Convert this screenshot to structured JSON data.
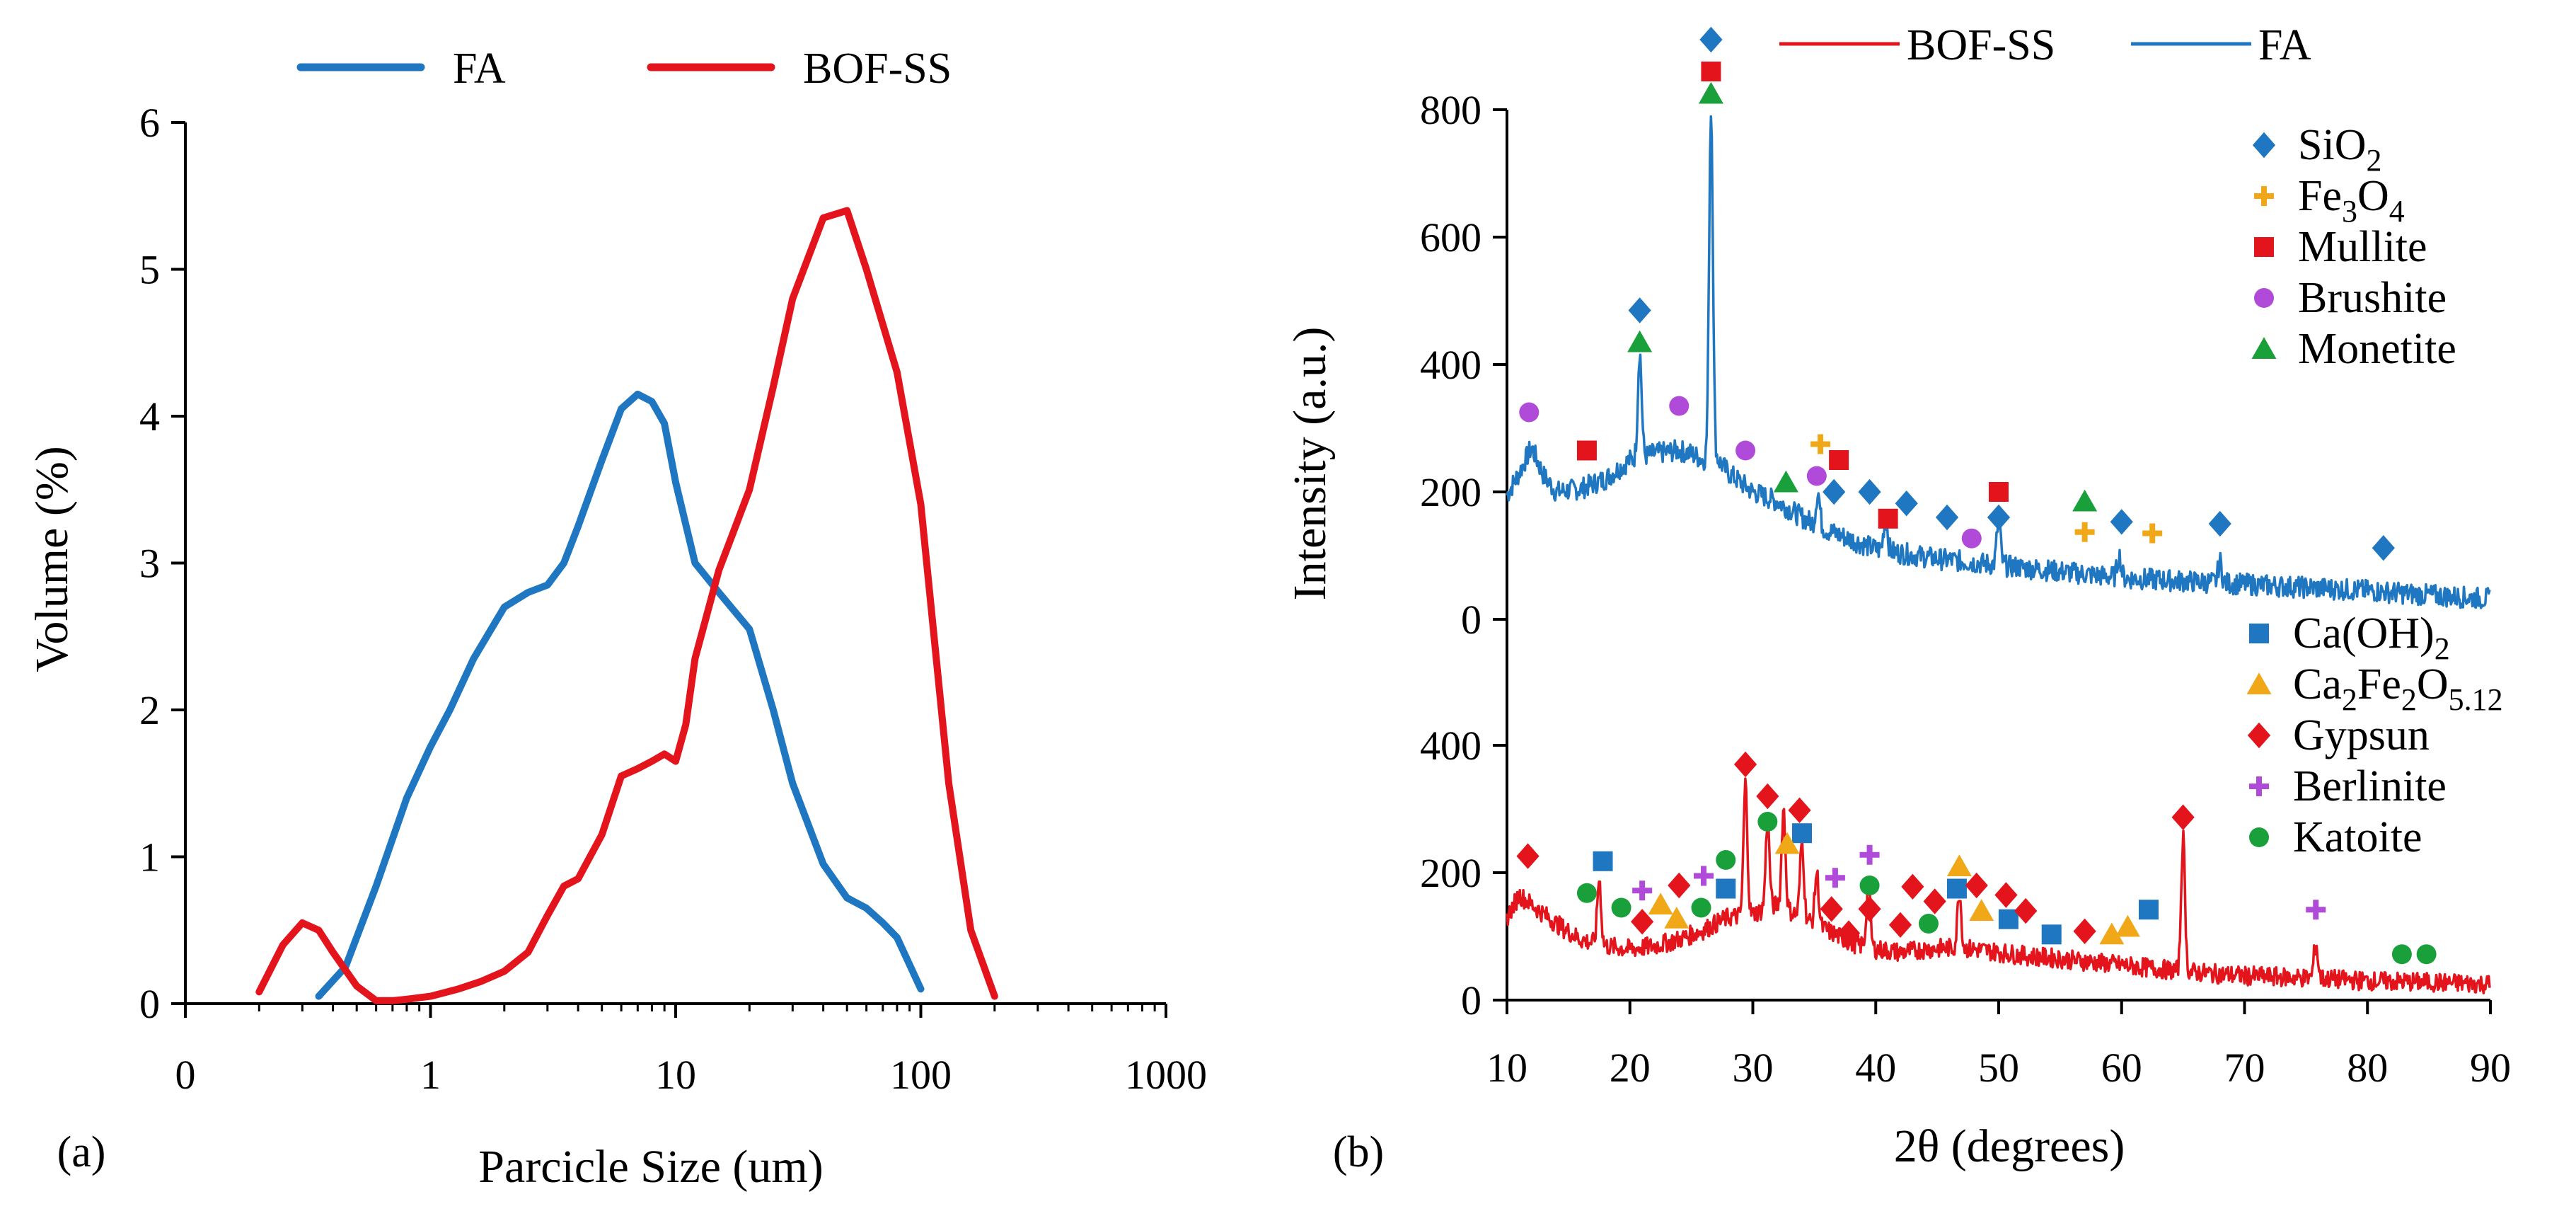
{
  "chart_data": [
    {
      "type": "line",
      "panel_label": "(a)",
      "xlabel": "Parcicle Size (um)",
      "ylabel": "Volume (%)",
      "xscale": "log",
      "xlim": [
        0.1,
        1000
      ],
      "ylim": [
        0,
        6
      ],
      "xticks": [
        0.1,
        1,
        10,
        100,
        1000
      ],
      "xtick_labels": [
        "0",
        "1",
        "10",
        "100",
        "1000"
      ],
      "yticks": [
        0,
        1,
        2,
        3,
        4,
        5,
        6
      ],
      "ytick_labels": [
        "0",
        "1",
        "2",
        "3",
        "4",
        "5",
        "6"
      ],
      "legend_position": "top",
      "series": [
        {
          "name": "FA",
          "color": "#1f77c1",
          "x": [
            0.35,
            0.45,
            0.6,
            0.8,
            1.0,
            1.2,
            1.5,
            2.0,
            2.5,
            3.0,
            3.5,
            4.0,
            5.0,
            6.0,
            7.0,
            8.0,
            9.0,
            10.0,
            12.0,
            15.0,
            20.0,
            25.0,
            30.0,
            40.0,
            50.0,
            60.0,
            70.0,
            80.0,
            100.0
          ],
          "y": [
            0.05,
            0.25,
            0.8,
            1.4,
            1.75,
            2.0,
            2.35,
            2.7,
            2.8,
            2.85,
            3.0,
            3.25,
            3.7,
            4.05,
            4.15,
            4.1,
            3.95,
            3.55,
            3.0,
            2.8,
            2.55,
            2.0,
            1.5,
            0.95,
            0.72,
            0.65,
            0.55,
            0.45,
            0.1
          ]
        },
        {
          "name": "BOF-SS",
          "color": "#e3141b",
          "x": [
            0.2,
            0.25,
            0.3,
            0.35,
            0.4,
            0.5,
            0.6,
            0.7,
            0.8,
            1.0,
            1.3,
            1.6,
            2.0,
            2.5,
            3.0,
            3.5,
            4.0,
            5.0,
            6.0,
            7.0,
            8.0,
            9.0,
            10.0,
            11.0,
            12.0,
            15.0,
            20.0,
            25.0,
            30.0,
            40.0,
            50.0,
            60.0,
            80.0,
            100.0,
            130.0,
            160.0,
            200.0
          ],
          "y": [
            0.08,
            0.4,
            0.55,
            0.5,
            0.35,
            0.12,
            0.02,
            0.02,
            0.03,
            0.05,
            0.1,
            0.15,
            0.22,
            0.35,
            0.6,
            0.8,
            0.85,
            1.15,
            1.55,
            1.6,
            1.65,
            1.7,
            1.65,
            1.9,
            2.35,
            2.95,
            3.5,
            4.2,
            4.8,
            5.35,
            5.4,
            5.0,
            4.3,
            3.4,
            1.5,
            0.5,
            0.05
          ]
        }
      ]
    },
    {
      "type": "line",
      "panel_label": "(b)",
      "xlabel": "2θ (degrees)",
      "ylabel": "Intensity (a.u.)",
      "xlim": [
        10,
        90
      ],
      "xticks": [
        10,
        20,
        30,
        40,
        50,
        60,
        70,
        80,
        90
      ],
      "xtick_labels": [
        "10",
        "20",
        "30",
        "40",
        "50",
        "60",
        "70",
        "80",
        "90"
      ],
      "legend_position": "top",
      "series_legend": [
        {
          "name": "BOF-SS",
          "color": "#e3141b"
        },
        {
          "name": "FA",
          "color": "#1f77c1"
        }
      ],
      "upper": {
        "series": "FA",
        "color": "#1f77c1",
        "ylim": [
          0,
          800
        ],
        "yticks": [
          0,
          200,
          400,
          600,
          800
        ],
        "ytick_labels": [
          "0",
          "200",
          "400",
          "600",
          "800"
        ],
        "baseline": [
          [
            10,
            195
          ],
          [
            11,
            230
          ],
          [
            12,
            270
          ],
          [
            13,
            225
          ],
          [
            14,
            200
          ],
          [
            16,
            205
          ],
          [
            18,
            220
          ],
          [
            20,
            250
          ],
          [
            22,
            260
          ],
          [
            24,
            265
          ],
          [
            25,
            260
          ],
          [
            26,
            250
          ],
          [
            27,
            255
          ],
          [
            28,
            230
          ],
          [
            30,
            200
          ],
          [
            32,
            185
          ],
          [
            34,
            160
          ],
          [
            36,
            140
          ],
          [
            38,
            125
          ],
          [
            40,
            110
          ],
          [
            45,
            95
          ],
          [
            50,
            85
          ],
          [
            55,
            75
          ],
          [
            60,
            65
          ],
          [
            65,
            60
          ],
          [
            70,
            55
          ],
          [
            75,
            50
          ],
          [
            80,
            45
          ],
          [
            85,
            38
          ],
          [
            90,
            32
          ]
        ],
        "peaks": [
          [
            20.8,
            420
          ],
          [
            26.6,
            800
          ],
          [
            35.3,
            200
          ],
          [
            40.8,
            160
          ],
          [
            50.0,
            155
          ],
          [
            59.8,
            100
          ],
          [
            68.0,
            90
          ]
        ],
        "phases": [
          {
            "name": "SiO",
            "sub": "2",
            "symbol": "diamond",
            "color": "#1f77c1",
            "markers": [
              [
                20.8,
                485
              ],
              [
                26.6,
                910
              ],
              [
                36.6,
                200
              ],
              [
                39.5,
                200
              ],
              [
                42.5,
                182
              ],
              [
                45.8,
                160
              ],
              [
                50.0,
                160
              ],
              [
                60.0,
                153
              ],
              [
                68.0,
                150
              ],
              [
                81.3,
                112
              ]
            ]
          },
          {
            "name": "Fe",
            "sub": "3",
            "name2": "O",
            "sub2": "4",
            "symbol": "plus",
            "color": "#f0a818",
            "markers": [
              [
                35.5,
                275
              ],
              [
                57.0,
                137
              ],
              [
                62.5,
                135
              ]
            ]
          },
          {
            "name": "Mullite",
            "symbol": "square",
            "color": "#e3141b",
            "markers": [
              [
                16.5,
                265
              ],
              [
                26.6,
                860
              ],
              [
                37.0,
                250
              ],
              [
                41.0,
                158
              ],
              [
                50.0,
                200
              ]
            ]
          },
          {
            "name": "Brushite",
            "symbol": "circle",
            "color": "#b04ad8",
            "markers": [
              [
                11.8,
                325
              ],
              [
                24.0,
                335
              ],
              [
                29.4,
                265
              ],
              [
                35.2,
                225
              ],
              [
                47.8,
                127
              ]
            ]
          },
          {
            "name": "Monetite",
            "symbol": "triangle",
            "color": "#1aa03a",
            "markers": [
              [
                20.8,
                435
              ],
              [
                26.6,
                825
              ],
              [
                32.7,
                215
              ],
              [
                57.0,
                185
              ]
            ]
          }
        ]
      },
      "lower": {
        "series": "BOF-SS",
        "color": "#e3141b",
        "ylim": [
          0,
          400
        ],
        "yticks": [
          0,
          200,
          400
        ],
        "ytick_labels": [
          "0",
          "200",
          "400"
        ],
        "baseline": [
          [
            10,
            130
          ],
          [
            11,
            165
          ],
          [
            12,
            150
          ],
          [
            14,
            120
          ],
          [
            16,
            95
          ],
          [
            18,
            85
          ],
          [
            20,
            80
          ],
          [
            22,
            85
          ],
          [
            24,
            95
          ],
          [
            26,
            110
          ],
          [
            28,
            130
          ],
          [
            30,
            135
          ],
          [
            32,
            150
          ],
          [
            34,
            130
          ],
          [
            36,
            110
          ],
          [
            38,
            90
          ],
          [
            40,
            80
          ],
          [
            42,
            75
          ],
          [
            44,
            80
          ],
          [
            46,
            82
          ],
          [
            48,
            80
          ],
          [
            50,
            75
          ],
          [
            52,
            70
          ],
          [
            55,
            65
          ],
          [
            60,
            55
          ],
          [
            65,
            45
          ],
          [
            70,
            38
          ],
          [
            75,
            35
          ],
          [
            80,
            30
          ],
          [
            85,
            28
          ],
          [
            90,
            25
          ]
        ],
        "peaks": [
          [
            17.5,
            190
          ],
          [
            29.4,
            340
          ],
          [
            31.2,
            280
          ],
          [
            32.5,
            300
          ],
          [
            34.0,
            250
          ],
          [
            35.2,
            200
          ],
          [
            39.4,
            180
          ],
          [
            46.8,
            170
          ],
          [
            65.0,
            255
          ],
          [
            75.8,
            90
          ]
        ],
        "phases": [
          {
            "name": "Ca(OH)",
            "sub": "2",
            "symbol": "square",
            "color": "#1f77c1",
            "markers": [
              [
                17.8,
                218
              ],
              [
                27.8,
                175
              ],
              [
                34.0,
                262
              ],
              [
                46.6,
                175
              ],
              [
                50.8,
                127
              ],
              [
                54.3,
                103
              ],
              [
                62.2,
                142
              ]
            ]
          },
          {
            "name": "Ca",
            "sub": "2",
            "name2": "Fe",
            "sub2": "2",
            "name3": "O",
            "sub3": "5.12",
            "symbol": "triangle",
            "color": "#f0a818",
            "markers": [
              [
                22.5,
                150
              ],
              [
                23.8,
                128
              ],
              [
                32.8,
                245
              ],
              [
                46.8,
                210
              ],
              [
                48.6,
                140
              ],
              [
                59.2,
                103
              ],
              [
                60.5,
                115
              ]
            ]
          },
          {
            "name": "Gypsun",
            "symbol": "diamond",
            "color": "#e3141b",
            "markers": [
              [
                11.7,
                226
              ],
              [
                21.0,
                123
              ],
              [
                24.0,
                180
              ],
              [
                29.4,
                370
              ],
              [
                31.2,
                320
              ],
              [
                33.8,
                298
              ],
              [
                36.4,
                143
              ],
              [
                37.8,
                105
              ],
              [
                39.5,
                143
              ],
              [
                42.0,
                118
              ],
              [
                43.0,
                178
              ],
              [
                44.8,
                155
              ],
              [
                48.2,
                180
              ],
              [
                50.6,
                165
              ],
              [
                52.2,
                140
              ],
              [
                57.0,
                108
              ],
              [
                65.0,
                287
              ]
            ]
          },
          {
            "name": "Berlinite",
            "symbol": "plus",
            "color": "#b04ad8",
            "markers": [
              [
                21.0,
                172
              ],
              [
                26.0,
                195
              ],
              [
                36.7,
                192
              ],
              [
                39.5,
                228
              ],
              [
                75.8,
                142
              ]
            ]
          },
          {
            "name": "Katoite",
            "symbol": "circle",
            "color": "#1aa03a",
            "markers": [
              [
                16.5,
                168
              ],
              [
                19.3,
                145
              ],
              [
                25.8,
                145
              ],
              [
                27.8,
                220
              ],
              [
                31.2,
                280
              ],
              [
                39.5,
                180
              ],
              [
                44.3,
                120
              ],
              [
                82.8,
                72
              ],
              [
                84.8,
                72
              ]
            ]
          }
        ]
      }
    }
  ]
}
